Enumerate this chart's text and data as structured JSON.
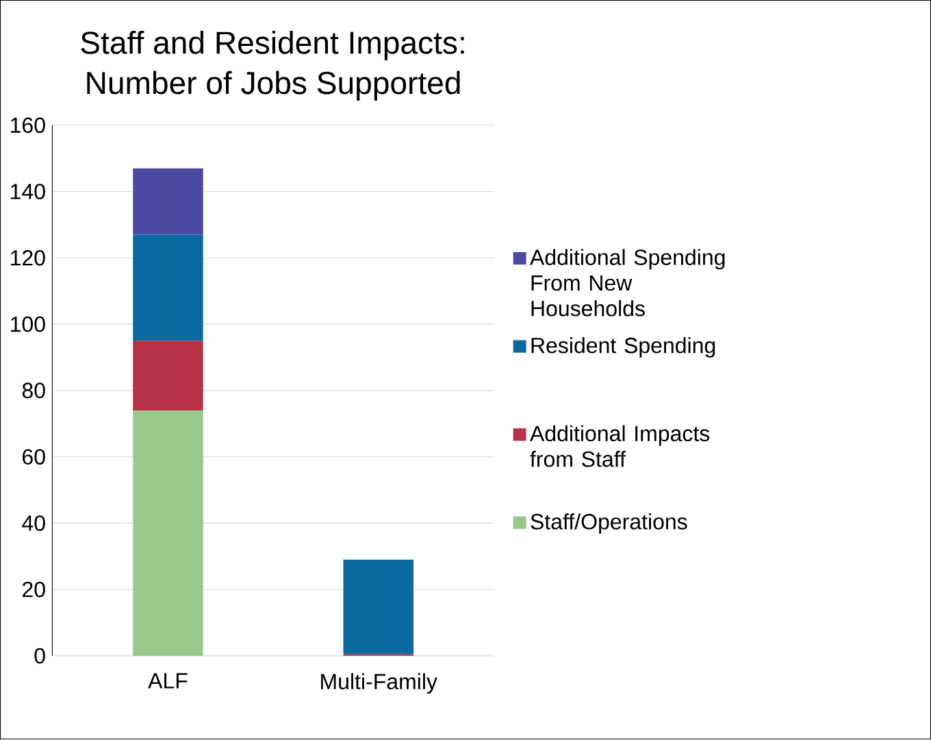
{
  "chart_data": {
    "type": "bar",
    "stacked": true,
    "title": "Staff and Resident Impacts:\nNumber of Jobs Supported",
    "categories": [
      "ALF",
      "Multi-Family"
    ],
    "series": [
      {
        "name": "Staff/Operations",
        "color": "#98c98a",
        "values": [
          74,
          0
        ]
      },
      {
        "name": "Additional Impacts from Staff",
        "color": "#b83248",
        "values": [
          21,
          0.5
        ]
      },
      {
        "name": "Resident Spending",
        "color": "#0a6aa0",
        "values": [
          32,
          28.5
        ]
      },
      {
        "name": "Additional Spending From New Households",
        "color": "#4a4aa0",
        "values": [
          20,
          0
        ]
      }
    ],
    "ylim": [
      0,
      160
    ],
    "yticks": [
      0,
      20,
      40,
      60,
      80,
      100,
      120,
      140,
      160
    ],
    "grid": "y",
    "legend": "right"
  }
}
